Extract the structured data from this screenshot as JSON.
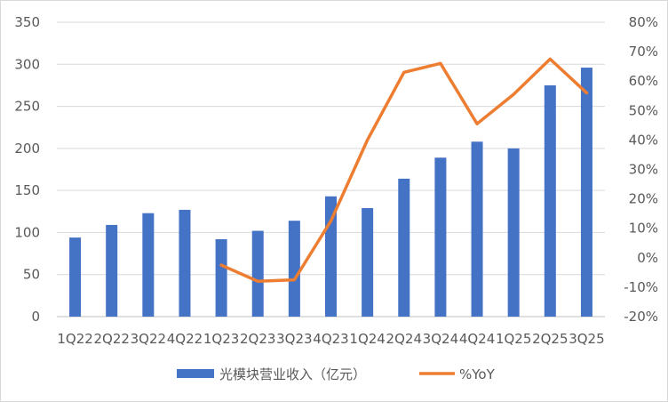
{
  "chart_data": {
    "type": "bar",
    "categories": [
      "1Q22",
      "2Q22",
      "3Q22",
      "4Q22",
      "1Q23",
      "2Q23",
      "3Q23",
      "4Q23",
      "1Q24",
      "2Q24",
      "3Q24",
      "4Q24",
      "1Q25",
      "2Q25",
      "3Q25"
    ],
    "x_tick_labels": [
      "1Q22",
      "2Q22",
      "3Q22",
      "4Q22",
      "1Q23",
      "2Q23",
      "3Q23",
      "4Q23",
      "1Q24",
      "2Q24",
      "3Q24",
      "4Q24",
      "1Q25",
      "2Q25",
      "3Q25"
    ],
    "series": [
      {
        "name": "光模块营业收入（亿元）",
        "type": "bar",
        "axis": "left",
        "color": "#4472C4",
        "values": [
          94,
          109,
          123,
          127,
          92,
          102,
          114,
          143,
          129,
          164,
          189,
          208,
          200,
          275,
          296
        ]
      },
      {
        "name": "%YoY",
        "type": "line",
        "axis": "right",
        "color": "#ED7D31",
        "values": [
          null,
          null,
          null,
          null,
          -2.5,
          -8,
          -7.5,
          12.5,
          40,
          63,
          66,
          45.5,
          55.5,
          67.5,
          56
        ]
      }
    ],
    "y_left": {
      "range": [
        0,
        350
      ],
      "ticks": [
        "0",
        "50",
        "100",
        "150",
        "200",
        "250",
        "300",
        "350"
      ]
    },
    "y_right": {
      "range": [
        -20,
        80
      ],
      "ticks": [
        "-20%",
        "-10%",
        "0%",
        "10%",
        "20%",
        "30%",
        "40%",
        "50%",
        "60%",
        "70%",
        "80%"
      ]
    },
    "grid": true,
    "legend_position": "bottom"
  },
  "legend": {
    "bar_label": "光模块营业收入（亿元）",
    "line_label": "%YoY"
  }
}
